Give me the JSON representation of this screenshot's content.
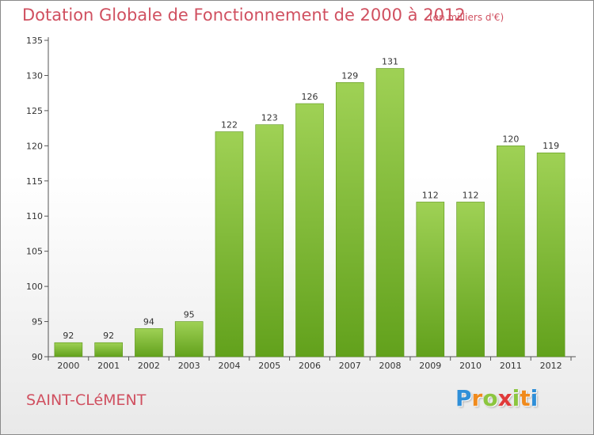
{
  "header": {
    "title": "Dotation Globale de Fonctionnement de 2000 à 2012",
    "subtitle": "(en milliers d'€)"
  },
  "footer": {
    "commune": "SAINT-CLéMENT",
    "logo_letters": [
      {
        "char": "P",
        "color": "#2f8fd8"
      },
      {
        "char": "r",
        "color": "#f08a1c"
      },
      {
        "char": "o",
        "color": "#8cc63f"
      },
      {
        "char": "x",
        "color": "#e03a3a"
      },
      {
        "char": "i",
        "color": "#8cc63f"
      },
      {
        "char": "t",
        "color": "#f08a1c"
      },
      {
        "char": "i",
        "color": "#2f8fd8"
      }
    ]
  },
  "colors": {
    "title": "#d05060",
    "bar_light": "#9fd155",
    "bar_dark": "#62a11c",
    "axis": "#555555",
    "grid": "#d8d8d8"
  },
  "chart_data": {
    "type": "bar",
    "title": "Dotation Globale de Fonctionnement de 2000 à 2012",
    "subtitle": "(en milliers d'€)",
    "categories": [
      "2000",
      "2001",
      "2002",
      "2003",
      "2004",
      "2005",
      "2006",
      "2007",
      "2008",
      "2009",
      "2010",
      "2011",
      "2012"
    ],
    "values": [
      92,
      92,
      94,
      95,
      122,
      123,
      126,
      129,
      131,
      112,
      112,
      120,
      119
    ],
    "ylim": [
      90,
      135
    ],
    "yticks": [
      90,
      95,
      100,
      105,
      110,
      115,
      120,
      125,
      130,
      135
    ],
    "xlabel": "",
    "ylabel": "",
    "grid": false,
    "data_labels": true
  }
}
